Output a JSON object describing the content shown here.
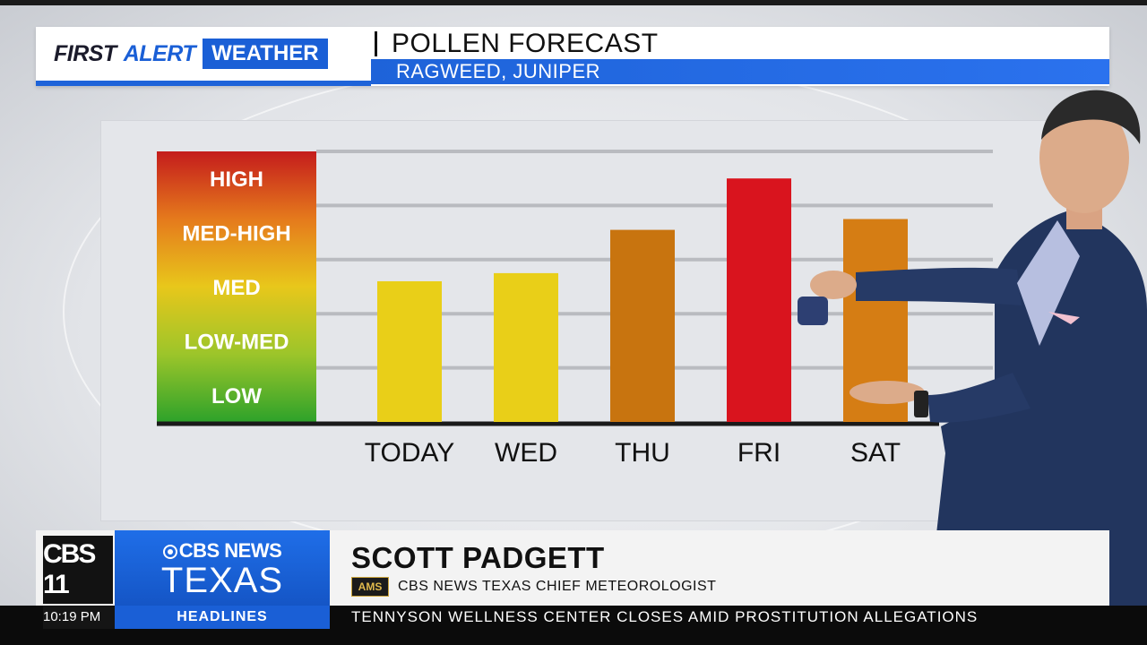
{
  "header": {
    "brand_first": "FIRST",
    "brand_alert": "ALERT",
    "brand_weather": "WEATHER",
    "title": "POLLEN FORECAST",
    "subtitle": "RAGWEED, JUNIPER",
    "colors": {
      "brand_blue": "#1a5fd6"
    }
  },
  "chart_data": {
    "type": "bar",
    "title": "POLLEN FORECAST",
    "subtitle": "RAGWEED, JUNIPER",
    "categories": [
      "TODAY",
      "WED",
      "THU",
      "FRI",
      "SAT"
    ],
    "values": [
      2.6,
      2.75,
      3.55,
      4.5,
      3.75
    ],
    "bar_colors": [
      "#e9cf18",
      "#e9cf18",
      "#c8740f",
      "#d9141e",
      "#d57d14"
    ],
    "y_levels": [
      "LOW",
      "LOW-MED",
      "MED",
      "MED-HIGH",
      "HIGH"
    ],
    "ylim": [
      0,
      5
    ],
    "level_scale_colors": [
      "#2ea22a",
      "#9cc52a",
      "#e8c71b",
      "#e57a1c",
      "#c41c1c"
    ],
    "grid": true,
    "xlabel": "",
    "ylabel": ""
  },
  "presenter": {
    "description_icon": "meteorologist-icon"
  },
  "lower_third": {
    "station_logo": "CBS 11",
    "network_top": "CBS NEWS",
    "network_bottom": "TEXAS",
    "name": "SCOTT PADGETT",
    "badge": "AMS",
    "role": "CBS NEWS TEXAS CHIEF METEOROLOGIST"
  },
  "ticker": {
    "time": "10:19 PM",
    "label": "HEADLINES",
    "text": "TENNYSON WELLNESS CENTER CLOSES AMID PROSTITUTION ALLEGATIONS"
  }
}
